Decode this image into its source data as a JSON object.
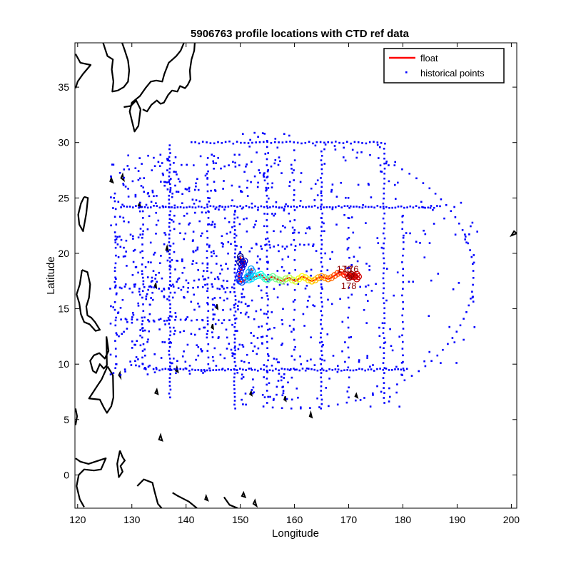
{
  "chart_data": {
    "type": "scatter",
    "title": "5906763 profile locations with CTD ref data",
    "xlabel": "Longitude",
    "ylabel": "Latitude",
    "xlim": [
      119.5,
      201
    ],
    "ylim": [
      -3,
      39
    ],
    "xticks": [
      120,
      130,
      140,
      150,
      160,
      170,
      180,
      190,
      200
    ],
    "yticks": [
      0,
      5,
      10,
      15,
      20,
      25,
      30,
      35
    ],
    "grid": false,
    "legend_position": "top-right",
    "legend": [
      {
        "label": "float",
        "color": "#ff0000",
        "marker": "line"
      },
      {
        "label": "historical points",
        "color": "#0000ff",
        "marker": "dot"
      }
    ],
    "profile_labels": [
      {
        "text": "178",
        "lon": 169.2,
        "lat": 18.6
      },
      {
        "text": "176",
        "lon": 170.4,
        "lat": 18.6
      },
      {
        "text": "178",
        "lon": 170.0,
        "lat": 17.1
      }
    ],
    "series": [
      {
        "name": "float",
        "color": "#ff0000",
        "points_lon": [
          150.0,
          150.1,
          149.9,
          150.2,
          150.5,
          150.8,
          150.6,
          150.3,
          150.0,
          149.8,
          149.7,
          149.9,
          150.3,
          150.9,
          151.5,
          151.9,
          152.2,
          152.0,
          151.6,
          151.3,
          151.6,
          152.1,
          152.7,
          153.3,
          153.8,
          154.2,
          154.6,
          155.0,
          155.5,
          156.0,
          156.6,
          157.2,
          157.8,
          158.4,
          159.0,
          159.6,
          160.2,
          160.8,
          161.4,
          162.0,
          162.6,
          163.2,
          163.8,
          164.4,
          165.0,
          165.6,
          166.2,
          166.8,
          167.4,
          168.0,
          168.6,
          169.2,
          169.8,
          170.4,
          171.0,
          171.5,
          171.8,
          171.5,
          171.0,
          170.5,
          170.0,
          170.3
        ],
        "points_lat": [
          19.7,
          19.5,
          19.2,
          19.0,
          19.2,
          19.3,
          19.0,
          18.7,
          18.4,
          18.1,
          17.8,
          17.5,
          17.4,
          17.6,
          17.9,
          18.1,
          18.4,
          18.6,
          18.3,
          17.9,
          17.6,
          17.7,
          17.9,
          18.0,
          18.1,
          17.9,
          17.7,
          17.6,
          17.8,
          17.9,
          17.7,
          17.6,
          17.5,
          17.7,
          17.8,
          17.6,
          17.5,
          17.7,
          17.9,
          17.8,
          17.6,
          17.5,
          17.6,
          17.8,
          17.9,
          17.8,
          17.7,
          17.8,
          18.0,
          18.2,
          18.3,
          18.1,
          18.0,
          17.9,
          18.0,
          18.1,
          17.9,
          17.7,
          17.9,
          18.1,
          17.8,
          18.0
        ]
      },
      {
        "name": "historical points",
        "color": "#0000ff",
        "groups": [
          {
            "kind": "hline",
            "y": 30.0,
            "x0": 141,
            "x1": 177,
            "step": 0.7
          },
          {
            "kind": "hline",
            "y": 24.2,
            "x0": 128,
            "x1": 187,
            "step": 0.55
          },
          {
            "kind": "hline",
            "y": 20.7,
            "x0": 153,
            "x1": 164,
            "step": 0.8
          },
          {
            "kind": "hline",
            "y": 9.5,
            "x0": 134,
            "x1": 181,
            "step": 0.55
          },
          {
            "kind": "hline",
            "y": 16.9,
            "x0": 126,
            "x1": 149,
            "step": 0.9
          },
          {
            "kind": "hline",
            "y": 14.0,
            "x0": 127,
            "x1": 148,
            "step": 1.0
          },
          {
            "kind": "vline",
            "x": 149.0,
            "y0": 6.0,
            "y1": 24.0,
            "step": 0.35
          },
          {
            "kind": "vline",
            "x": 137.0,
            "y0": 7.0,
            "y1": 30.0,
            "step": 0.35
          },
          {
            "kind": "vline",
            "x": 165.0,
            "y0": 6.0,
            "y1": 29.5,
            "step": 0.4
          },
          {
            "kind": "vline",
            "x": 176.5,
            "y0": 6.5,
            "y1": 29.5,
            "step": 0.45
          },
          {
            "kind": "vline",
            "x": 180.0,
            "y0": 9.0,
            "y1": 24.0,
            "step": 0.6
          },
          {
            "kind": "vline",
            "x": 155.0,
            "y0": 6.5,
            "y1": 30.5,
            "step": 0.55
          },
          {
            "kind": "vline",
            "x": 144.0,
            "y0": 10.0,
            "y1": 29.0,
            "step": 0.6
          },
          {
            "kind": "vline",
            "x": 132.0,
            "y0": 10.0,
            "y1": 24.0,
            "step": 0.6
          },
          {
            "kind": "vline",
            "x": 127.0,
            "y0": 10.0,
            "y1": 26.0,
            "step": 0.7
          },
          {
            "kind": "vline",
            "x": 160.0,
            "y0": 9.5,
            "y1": 30.0,
            "step": 0.9
          },
          {
            "kind": "vline",
            "x": 170.0,
            "y0": 7.0,
            "y1": 25.0,
            "step": 0.9
          },
          {
            "kind": "arc",
            "cx": 160,
            "cy": 18,
            "rx": 33,
            "ry": 12,
            "a0": -100,
            "a1": 80,
            "step": 3
          },
          {
            "kind": "cluster",
            "x0": 126,
            "x1": 150,
            "y0": 9,
            "y1": 29,
            "n": 520
          },
          {
            "kind": "cluster",
            "x0": 150,
            "x1": 160,
            "y0": 6,
            "y1": 31,
            "n": 220
          },
          {
            "kind": "cluster",
            "x0": 160,
            "x1": 180,
            "y0": 6,
            "y1": 30,
            "n": 160
          },
          {
            "kind": "cluster",
            "x0": 180,
            "x1": 194,
            "y0": 10,
            "y1": 25,
            "n": 45
          }
        ]
      }
    ],
    "coastlines": [
      {
        "name": "japan",
        "points": [
          [
            128.5,
            33.2
          ],
          [
            129.8,
            33.3
          ],
          [
            130.8,
            33.8
          ],
          [
            131.6,
            33.0
          ],
          [
            131.2,
            31.5
          ],
          [
            130.5,
            31.0
          ],
          [
            130.0,
            32.0
          ],
          [
            129.6,
            32.8
          ],
          [
            130.0,
            33.6
          ],
          [
            131.5,
            34.2
          ],
          [
            132.5,
            34.9
          ],
          [
            133.5,
            35.5
          ],
          [
            134.5,
            35.6
          ],
          [
            135.6,
            35.5
          ],
          [
            136.0,
            36.2
          ],
          [
            136.8,
            37.2
          ],
          [
            137.5,
            37.5
          ],
          [
            138.2,
            37.8
          ],
          [
            139.0,
            38.3
          ],
          [
            139.6,
            39.0
          ]
        ]
      },
      {
        "name": "japan-south",
        "points": [
          [
            132.0,
            33.0
          ],
          [
            132.8,
            32.8
          ],
          [
            133.6,
            33.4
          ],
          [
            134.6,
            33.8
          ],
          [
            135.3,
            33.5
          ],
          [
            135.9,
            33.6
          ],
          [
            136.7,
            34.3
          ],
          [
            137.4,
            34.7
          ],
          [
            138.4,
            34.6
          ],
          [
            138.9,
            35.1
          ],
          [
            139.8,
            34.9
          ],
          [
            140.3,
            35.2
          ],
          [
            140.8,
            35.7
          ],
          [
            140.7,
            36.5
          ],
          [
            141.0,
            37.5
          ],
          [
            141.5,
            38.3
          ],
          [
            141.6,
            39.0
          ]
        ]
      },
      {
        "name": "korea",
        "points": [
          [
            124.7,
            39.0
          ],
          [
            125.1,
            38.4
          ],
          [
            125.5,
            37.8
          ],
          [
            126.5,
            37.5
          ],
          [
            126.3,
            36.6
          ],
          [
            126.6,
            35.5
          ],
          [
            126.4,
            34.6
          ],
          [
            127.4,
            34.7
          ],
          [
            128.5,
            35.0
          ],
          [
            129.3,
            35.5
          ],
          [
            129.5,
            36.5
          ],
          [
            129.3,
            37.4
          ],
          [
            128.7,
            38.3
          ],
          [
            128.2,
            39.0
          ]
        ]
      },
      {
        "name": "china",
        "points": [
          [
            119.6,
            38.0
          ],
          [
            120.5,
            37.2
          ],
          [
            122.4,
            37.0
          ],
          [
            121.0,
            36.2
          ],
          [
            120.0,
            35.5
          ],
          [
            119.6,
            34.9
          ]
        ]
      },
      {
        "name": "taiwan",
        "points": [
          [
            121.2,
            25.1
          ],
          [
            121.9,
            25.0
          ],
          [
            121.6,
            23.6
          ],
          [
            121.0,
            22.0
          ],
          [
            120.3,
            22.6
          ],
          [
            120.1,
            23.5
          ],
          [
            120.6,
            24.5
          ],
          [
            121.2,
            25.1
          ]
        ]
      },
      {
        "name": "luzon",
        "points": [
          [
            120.8,
            18.5
          ],
          [
            121.8,
            18.3
          ],
          [
            122.3,
            17.2
          ],
          [
            122.1,
            16.0
          ],
          [
            121.6,
            15.2
          ],
          [
            121.8,
            14.4
          ],
          [
            122.5,
            14.2
          ],
          [
            123.2,
            13.8
          ],
          [
            124.1,
            13.1
          ],
          [
            123.3,
            13.0
          ],
          [
            122.2,
            13.6
          ],
          [
            121.2,
            13.8
          ],
          [
            120.6,
            14.5
          ],
          [
            120.3,
            15.5
          ],
          [
            119.8,
            16.3
          ],
          [
            120.4,
            17.2
          ],
          [
            120.8,
            18.5
          ]
        ]
      },
      {
        "name": "visayas",
        "points": [
          [
            125.3,
            12.5
          ],
          [
            125.7,
            11.2
          ],
          [
            125.0,
            10.5
          ],
          [
            124.0,
            11.0
          ],
          [
            123.0,
            10.8
          ],
          [
            122.3,
            10.3
          ],
          [
            122.8,
            9.4
          ],
          [
            123.4,
            9.2
          ],
          [
            124.1,
            10.0
          ],
          [
            124.8,
            9.6
          ],
          [
            125.4,
            9.9
          ],
          [
            125.3,
            12.5
          ]
        ]
      },
      {
        "name": "mindanao",
        "points": [
          [
            125.5,
            9.8
          ],
          [
            126.5,
            9.0
          ],
          [
            126.6,
            7.0
          ],
          [
            126.2,
            6.2
          ],
          [
            125.4,
            5.6
          ],
          [
            124.8,
            6.1
          ],
          [
            124.1,
            6.8
          ],
          [
            122.1,
            6.9
          ],
          [
            122.9,
            7.5
          ],
          [
            123.7,
            8.1
          ],
          [
            124.4,
            8.6
          ],
          [
            125.5,
            9.8
          ]
        ]
      },
      {
        "name": "borneo",
        "points": [
          [
            119.6,
            6.0
          ],
          [
            119.9,
            5.3
          ],
          [
            119.6,
            4.5
          ]
        ]
      },
      {
        "name": "sulawesi",
        "points": [
          [
            119.6,
            1.5
          ],
          [
            120.5,
            1.2
          ],
          [
            122.0,
            1.0
          ],
          [
            124.5,
            1.4
          ],
          [
            125.2,
            1.5
          ],
          [
            124.3,
            0.5
          ],
          [
            123.0,
            0.4
          ],
          [
            121.2,
            0.5
          ],
          [
            120.2,
            0.0
          ],
          [
            119.8,
            -1.0
          ],
          [
            120.4,
            -2.2
          ],
          [
            121.2,
            -2.9
          ]
        ]
      },
      {
        "name": "halmahera",
        "points": [
          [
            127.8,
            2.2
          ],
          [
            128.3,
            1.6
          ],
          [
            128.7,
            1.3
          ],
          [
            127.9,
            0.8
          ],
          [
            128.3,
            0.3
          ],
          [
            127.6,
            -0.2
          ],
          [
            127.3,
            1.0
          ],
          [
            127.8,
            2.2
          ]
        ]
      },
      {
        "name": "new-guinea",
        "points": [
          [
            131.0,
            -1.0
          ],
          [
            132.2,
            -0.4
          ],
          [
            133.8,
            -0.7
          ],
          [
            134.2,
            -1.5
          ],
          [
            134.8,
            -2.6
          ],
          [
            135.5,
            -3.0
          ]
        ]
      },
      {
        "name": "new-guinea-2",
        "points": [
          [
            137.5,
            -1.6
          ],
          [
            138.5,
            -1.9
          ],
          [
            140.5,
            -2.4
          ],
          [
            142.0,
            -3.0
          ]
        ]
      },
      {
        "name": "bismarck",
        "points": [
          [
            147.0,
            -2.0
          ],
          [
            148.0,
            -2.7
          ],
          [
            149.5,
            -3.0
          ]
        ]
      }
    ],
    "islands": [
      [
        [
          131.2,
          24.3
        ],
        [
          131.4,
          24.5
        ],
        [
          131.6,
          24.2
        ]
      ],
      [
        [
          126.0,
          26.5
        ],
        [
          126.2,
          26.8
        ],
        [
          126.5,
          26.4
        ]
      ],
      [
        [
          128.0,
          26.8
        ],
        [
          128.3,
          27.1
        ],
        [
          128.5,
          26.6
        ]
      ],
      [
        [
          135.0,
          3.2
        ],
        [
          135.3,
          3.6
        ],
        [
          135.6,
          3.1
        ]
      ],
      [
        [
          134.3,
          7.4
        ],
        [
          134.6,
          7.7
        ],
        [
          134.8,
          7.3
        ]
      ],
      [
        [
          138.1,
          9.4
        ],
        [
          138.3,
          9.7
        ],
        [
          138.5,
          9.3
        ]
      ],
      [
        [
          144.7,
          13.3
        ],
        [
          144.9,
          13.6
        ],
        [
          145.0,
          13.2
        ]
      ],
      [
        [
          145.5,
          15.1
        ],
        [
          145.7,
          15.4
        ],
        [
          145.8,
          15.0
        ]
      ],
      [
        [
          151.8,
          7.3
        ],
        [
          152.0,
          7.5
        ],
        [
          152.1,
          7.2
        ]
      ],
      [
        [
          158.1,
          6.8
        ],
        [
          158.3,
          7.1
        ],
        [
          158.4,
          6.7
        ]
      ],
      [
        [
          162.8,
          5.3
        ],
        [
          163.0,
          5.6
        ],
        [
          163.2,
          5.2
        ]
      ],
      [
        [
          171.2,
          7.1
        ],
        [
          171.4,
          7.3
        ],
        [
          171.6,
          7.0
        ]
      ],
      [
        [
          127.6,
          9.0
        ],
        [
          127.8,
          9.2
        ],
        [
          127.9,
          8.8
        ]
      ],
      [
        [
          134.2,
          17.0
        ],
        [
          134.4,
          17.3
        ],
        [
          134.5,
          16.9
        ]
      ],
      [
        [
          136.3,
          20.3
        ],
        [
          136.5,
          20.6
        ],
        [
          136.7,
          20.2
        ]
      ],
      [
        [
          150.3,
          -1.9
        ],
        [
          150.6,
          -1.6
        ],
        [
          150.9,
          -2.0
        ]
      ],
      [
        [
          152.4,
          -2.6
        ],
        [
          152.7,
          -2.3
        ],
        [
          153.0,
          -2.8
        ]
      ],
      [
        [
          200.0,
          21.6
        ],
        [
          200.5,
          22.0
        ],
        [
          201.0,
          21.8
        ]
      ],
      [
        [
          143.5,
          -2.2
        ],
        [
          143.7,
          -1.9
        ],
        [
          144.0,
          -2.3
        ]
      ]
    ]
  }
}
